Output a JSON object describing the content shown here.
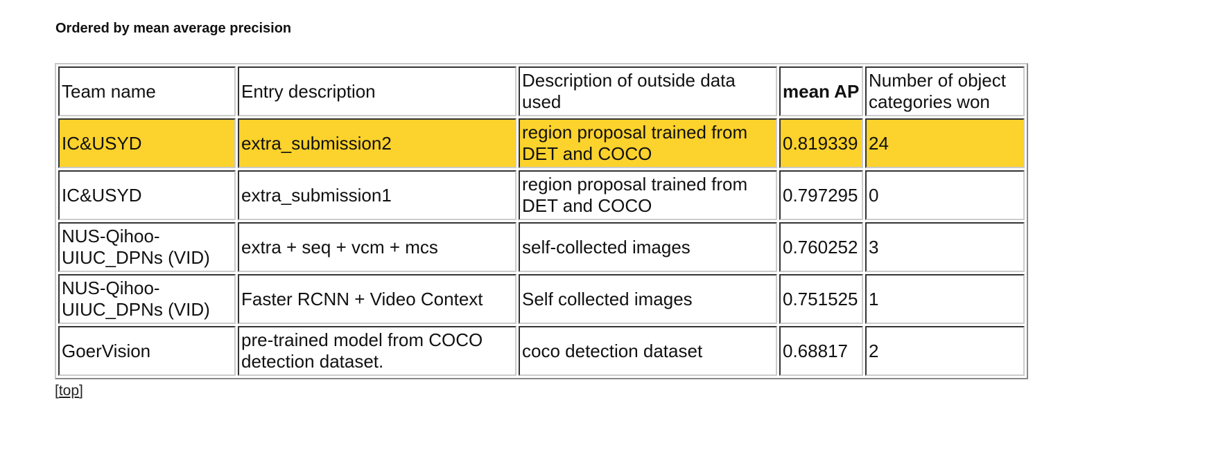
{
  "heading": "Ordered by mean average precision",
  "highlight_color": "#fcd22c",
  "table": {
    "headers": [
      "Team name",
      "Entry description",
      "Description of outside data used",
      "mean AP",
      "Number of object categories won"
    ],
    "rows": [
      {
        "team": "IC&USYD",
        "entry": "extra_submission2",
        "outside": "region proposal trained from DET and COCO",
        "map": "0.819339",
        "won": "24",
        "highlighted": true
      },
      {
        "team": "IC&USYD",
        "entry": "extra_submission1",
        "outside": "region proposal trained from DET and COCO",
        "map": "0.797295",
        "won": "0"
      },
      {
        "team": "NUS-Qihoo-UIUC_DPNs (VID)",
        "entry": "extra + seq + vcm + mcs",
        "outside": "self-collected images",
        "map": "0.760252",
        "won": "3"
      },
      {
        "team": "NUS-Qihoo-UIUC_DPNs (VID)",
        "entry": "Faster RCNN + Video Context",
        "outside": "Self collected images",
        "map": "0.751525",
        "won": "1"
      },
      {
        "team": "GoerVision",
        "entry": "pre-trained model from COCO detection dataset.",
        "outside": "coco detection dataset",
        "map": "0.68817",
        "won": "2"
      }
    ]
  },
  "top_link": {
    "open": "[",
    "label": "top",
    "close": "]"
  }
}
